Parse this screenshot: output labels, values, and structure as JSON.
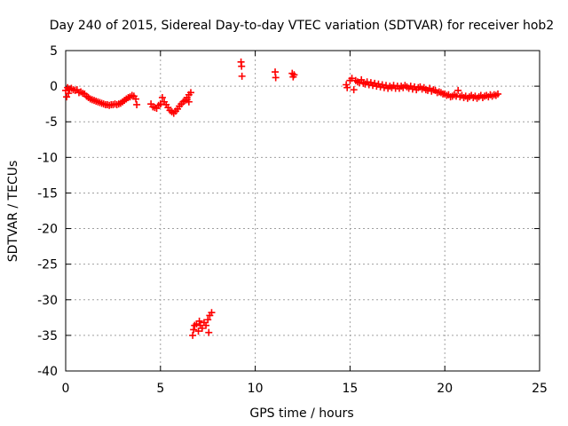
{
  "chart_data": {
    "type": "scatter",
    "title": "Day 240 of 2015, Sidereal Day-to-day VTEC variation (SDTVAR) for receiver hob2",
    "xlabel": "GPS time / hours",
    "ylabel": "SDTVAR / TECUs",
    "xlim": [
      0,
      25
    ],
    "ylim": [
      -40,
      5
    ],
    "x_ticks": [
      0,
      5,
      10,
      15,
      20,
      25
    ],
    "y_ticks": [
      5,
      0,
      -5,
      -10,
      -15,
      -20,
      -25,
      -30,
      -35,
      -40
    ],
    "grid": true,
    "marker": "+",
    "series_color": "#ff0000",
    "series": [
      {
        "name": "SDTVAR",
        "points": [
          [
            0.0,
            -0.6
          ],
          [
            0.05,
            -1.5
          ],
          [
            0.1,
            -0.2
          ],
          [
            0.15,
            -1.0
          ],
          [
            0.2,
            -0.4
          ],
          [
            0.3,
            -0.3
          ],
          [
            0.4,
            -0.5
          ],
          [
            0.5,
            -0.6
          ],
          [
            0.6,
            -0.5
          ],
          [
            0.7,
            -0.9
          ],
          [
            0.8,
            -0.8
          ],
          [
            0.9,
            -1.0
          ],
          [
            1.0,
            -1.1
          ],
          [
            1.1,
            -1.4
          ],
          [
            1.2,
            -1.6
          ],
          [
            1.3,
            -1.8
          ],
          [
            1.4,
            -1.9
          ],
          [
            1.5,
            -2.0
          ],
          [
            1.6,
            -2.1
          ],
          [
            1.7,
            -2.2
          ],
          [
            1.8,
            -2.3
          ],
          [
            1.9,
            -2.4
          ],
          [
            2.0,
            -2.5
          ],
          [
            2.1,
            -2.6
          ],
          [
            2.2,
            -2.6
          ],
          [
            2.3,
            -2.7
          ],
          [
            2.4,
            -2.6
          ],
          [
            2.5,
            -2.6
          ],
          [
            2.6,
            -2.5
          ],
          [
            2.7,
            -2.6
          ],
          [
            2.8,
            -2.5
          ],
          [
            2.9,
            -2.4
          ],
          [
            3.0,
            -2.2
          ],
          [
            3.1,
            -2.0
          ],
          [
            3.2,
            -1.8
          ],
          [
            3.3,
            -1.6
          ],
          [
            3.4,
            -1.5
          ],
          [
            3.5,
            -1.3
          ],
          [
            3.6,
            -1.4
          ],
          [
            3.7,
            -1.8
          ],
          [
            3.75,
            -2.6
          ],
          [
            4.5,
            -2.5
          ],
          [
            4.6,
            -2.9
          ],
          [
            4.7,
            -3.0
          ],
          [
            4.8,
            -3.1
          ],
          [
            4.9,
            -2.7
          ],
          [
            5.0,
            -2.5
          ],
          [
            5.1,
            -1.6
          ],
          [
            5.2,
            -2.2
          ],
          [
            5.3,
            -2.6
          ],
          [
            5.4,
            -3.0
          ],
          [
            5.5,
            -3.4
          ],
          [
            5.6,
            -3.6
          ],
          [
            5.7,
            -3.8
          ],
          [
            5.8,
            -3.5
          ],
          [
            5.9,
            -3.2
          ],
          [
            6.0,
            -2.8
          ],
          [
            6.1,
            -2.5
          ],
          [
            6.2,
            -2.2
          ],
          [
            6.3,
            -2.0
          ],
          [
            6.4,
            -1.6
          ],
          [
            6.5,
            -1.2
          ],
          [
            6.6,
            -0.9
          ],
          [
            6.5,
            -2.2
          ],
          [
            6.4,
            -1.9
          ],
          [
            6.7,
            -35.0
          ],
          [
            6.75,
            -34.2
          ],
          [
            6.8,
            -33.6
          ],
          [
            6.9,
            -33.4
          ],
          [
            7.0,
            -34.4
          ],
          [
            7.05,
            -33.0
          ],
          [
            7.1,
            -33.6
          ],
          [
            7.2,
            -34.0
          ],
          [
            7.3,
            -33.2
          ],
          [
            7.4,
            -33.6
          ],
          [
            7.5,
            -32.8
          ],
          [
            7.55,
            -34.6
          ],
          [
            7.6,
            -32.2
          ],
          [
            7.7,
            -31.8
          ],
          [
            9.25,
            3.4
          ],
          [
            9.28,
            2.8
          ],
          [
            9.3,
            1.4
          ],
          [
            11.05,
            2.0
          ],
          [
            11.08,
            1.2
          ],
          [
            11.95,
            1.8
          ],
          [
            12.0,
            1.3
          ],
          [
            12.05,
            1.6
          ],
          [
            14.8,
            0.2
          ],
          [
            14.85,
            -0.2
          ],
          [
            15.0,
            0.8
          ],
          [
            15.1,
            1.1
          ],
          [
            15.2,
            -0.5
          ],
          [
            15.3,
            0.8
          ],
          [
            15.4,
            0.6
          ],
          [
            15.5,
            0.5
          ],
          [
            15.6,
            0.9
          ],
          [
            15.7,
            0.4
          ],
          [
            15.8,
            0.3
          ],
          [
            15.9,
            0.6
          ],
          [
            16.0,
            0.2
          ],
          [
            16.1,
            0.5
          ],
          [
            16.2,
            0.1
          ],
          [
            16.3,
            0.4
          ],
          [
            16.4,
            0.0
          ],
          [
            16.5,
            0.3
          ],
          [
            16.6,
            -0.1
          ],
          [
            16.7,
            0.2
          ],
          [
            16.8,
            -0.2
          ],
          [
            16.9,
            0.1
          ],
          [
            17.0,
            -0.3
          ],
          [
            17.1,
            0.0
          ],
          [
            17.2,
            -0.2
          ],
          [
            17.3,
            0.1
          ],
          [
            17.4,
            -0.3
          ],
          [
            17.5,
            0.0
          ],
          [
            17.6,
            -0.3
          ],
          [
            17.7,
            0.0
          ],
          [
            17.8,
            -0.2
          ],
          [
            17.9,
            0.1
          ],
          [
            18.0,
            -0.1
          ],
          [
            18.1,
            -0.3
          ],
          [
            18.2,
            0.0
          ],
          [
            18.3,
            -0.4
          ],
          [
            18.4,
            -0.1
          ],
          [
            18.5,
            -0.5
          ],
          [
            18.6,
            -0.2
          ],
          [
            18.7,
            -0.1
          ],
          [
            18.8,
            -0.4
          ],
          [
            18.9,
            -0.2
          ],
          [
            19.0,
            -0.5
          ],
          [
            19.1,
            -0.6
          ],
          [
            19.2,
            -0.3
          ],
          [
            19.3,
            -0.7
          ],
          [
            19.4,
            -0.5
          ],
          [
            19.5,
            -0.6
          ],
          [
            19.6,
            -0.9
          ],
          [
            19.7,
            -0.8
          ],
          [
            19.8,
            -0.9
          ],
          [
            19.9,
            -1.1
          ],
          [
            20.0,
            -1.1
          ],
          [
            20.1,
            -1.3
          ],
          [
            20.2,
            -1.2
          ],
          [
            20.3,
            -1.5
          ],
          [
            20.4,
            -1.4
          ],
          [
            20.5,
            -1.2
          ],
          [
            20.6,
            -1.4
          ],
          [
            20.7,
            -0.6
          ],
          [
            20.8,
            -1.5
          ],
          [
            20.9,
            -1.3
          ],
          [
            21.0,
            -1.6
          ],
          [
            21.1,
            -1.4
          ],
          [
            21.2,
            -1.7
          ],
          [
            21.3,
            -1.5
          ],
          [
            21.4,
            -1.3
          ],
          [
            21.5,
            -1.6
          ],
          [
            21.6,
            -1.4
          ],
          [
            21.7,
            -1.7
          ],
          [
            21.8,
            -1.5
          ],
          [
            21.9,
            -1.3
          ],
          [
            22.0,
            -1.6
          ],
          [
            22.1,
            -1.4
          ],
          [
            22.2,
            -1.3
          ],
          [
            22.3,
            -1.5
          ],
          [
            22.4,
            -1.2
          ],
          [
            22.5,
            -1.4
          ],
          [
            22.6,
            -1.2
          ],
          [
            22.7,
            -1.3
          ],
          [
            22.8,
            -1.1
          ]
        ]
      }
    ]
  }
}
